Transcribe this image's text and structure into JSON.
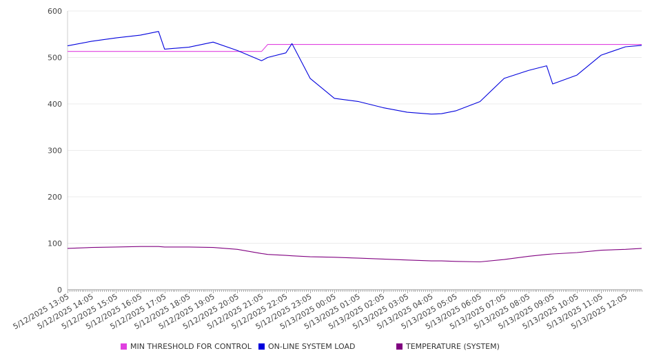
{
  "chart_data": {
    "type": "line",
    "title": "",
    "xlabel": "",
    "ylabel": "",
    "ylim": [
      0,
      600
    ],
    "y_ticks": [
      0,
      100,
      200,
      300,
      400,
      500,
      600
    ],
    "grid": true,
    "legend_position": "bottom",
    "x_tick_labels": [
      "5/12/2025 13:05",
      "5/12/2025 14:05",
      "5/12/2025 15:05",
      "5/12/2025 16:05",
      "5/12/2025 17:05",
      "5/12/2025 18:05",
      "5/12/2025 19:05",
      "5/12/2025 20:05",
      "5/12/2025 21:05",
      "5/12/2025 22:05",
      "5/12/2025 23:05",
      "5/13/2025 00:05",
      "5/13/2025 01:05",
      "5/13/2025 02:05",
      "5/13/2025 03:05",
      "5/13/2025 04:05",
      "5/13/2025 05:05",
      "5/13/2025 06:05",
      "5/13/2025 07:05",
      "5/13/2025 08:05",
      "5/13/2025 09:05",
      "5/13/2025 10:05",
      "5/13/2025 11:05",
      "5/13/2025 12:05"
    ],
    "x": [
      "5/12/2025 13:05",
      "5/12/2025 14:05",
      "5/12/2025 15:05",
      "5/12/2025 16:05",
      "5/12/2025 16:50",
      "5/12/2025 17:05",
      "5/12/2025 18:05",
      "5/12/2025 19:05",
      "5/12/2025 20:05",
      "5/12/2025 21:05",
      "5/12/2025 21:20",
      "5/12/2025 22:05",
      "5/12/2025 22:20",
      "5/12/2025 23:05",
      "5/13/2025 00:05",
      "5/13/2025 01:05",
      "5/13/2025 02:05",
      "5/13/2025 03:05",
      "5/13/2025 04:05",
      "5/13/2025 04:30",
      "5/13/2025 05:05",
      "5/13/2025 06:05",
      "5/13/2025 07:05",
      "5/13/2025 08:05",
      "5/13/2025 08:50",
      "5/13/2025 09:05",
      "5/13/2025 10:05",
      "5/13/2025 11:05",
      "5/13/2025 12:05",
      "5/13/2025 12:45"
    ],
    "series": [
      {
        "name": "MIN THRESHOLD FOR CONTROL",
        "color": "#e040e0",
        "values": [
          513,
          513,
          513,
          513,
          513,
          513,
          513,
          513,
          513,
          513,
          528,
          528,
          528,
          528,
          528,
          528,
          528,
          528,
          528,
          528,
          528,
          528,
          528,
          528,
          528,
          528,
          528,
          528,
          528,
          528
        ]
      },
      {
        "name": "ON-LINE SYSTEM LOAD",
        "color": "#0000dd",
        "values": [
          525,
          535,
          542,
          548,
          556,
          518,
          522,
          533,
          515,
          493,
          500,
          510,
          530,
          455,
          412,
          405,
          392,
          382,
          378,
          379,
          385,
          405,
          455,
          472,
          482,
          443,
          462,
          505,
          523,
          526
        ]
      },
      {
        "name": "TEMPERATURE (SYSTEM)",
        "color": "#800080",
        "values": [
          89,
          91,
          92,
          93,
          93,
          92,
          92,
          91,
          87,
          78,
          76,
          74,
          73,
          71,
          70,
          68,
          66,
          64,
          62,
          62,
          61,
          60,
          65,
          72,
          76,
          77,
          80,
          85,
          87,
          89
        ]
      }
    ]
  }
}
